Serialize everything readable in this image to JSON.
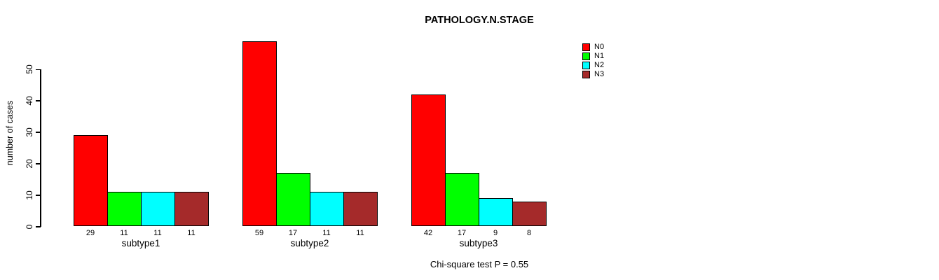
{
  "title": "PATHOLOGY.N.STAGE",
  "caption": "Chi-square test P = 0.55",
  "chart_data": {
    "type": "bar",
    "title": "PATHOLOGY.N.STAGE",
    "xlabel": "",
    "ylabel": "number of cases",
    "categories": [
      "subtype1",
      "subtype2",
      "subtype3"
    ],
    "series": [
      {
        "name": "N0",
        "color": "#ff0000",
        "values": [
          29,
          59,
          42
        ]
      },
      {
        "name": "N1",
        "color": "#00ff00",
        "values": [
          11,
          17,
          17
        ]
      },
      {
        "name": "N2",
        "color": "#00ffff",
        "values": [
          11,
          11,
          9
        ]
      },
      {
        "name": "N3",
        "color": "#a52a2a",
        "values": [
          11,
          11,
          8
        ]
      }
    ],
    "bar_labels": [
      [
        "29",
        "11",
        "11",
        "11"
      ],
      [
        "59",
        "17",
        "11",
        "11"
      ],
      [
        "42",
        "17",
        "9",
        "8"
      ]
    ],
    "yticks": [
      0,
      10,
      20,
      30,
      40,
      50
    ],
    "ylim": [
      0,
      59
    ],
    "grid": false,
    "legend_position": "top-right",
    "legend_entries": [
      "N0",
      "N1",
      "N2",
      "N3"
    ],
    "annotation": "Chi-square test P = 0.55"
  }
}
